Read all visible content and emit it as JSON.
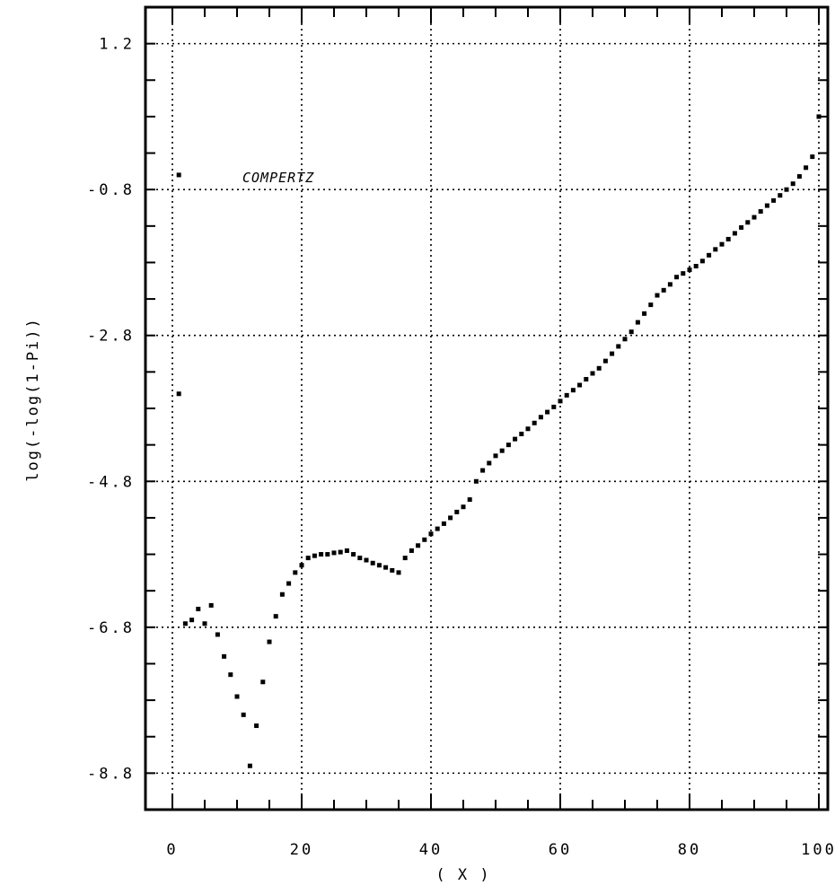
{
  "chart_data": {
    "type": "scatter",
    "xlabel": "( X )",
    "ylabel": "log(-log(1-Pi))",
    "annotation": "COMPERTZ",
    "xlim": [
      0,
      100
    ],
    "ylim": [
      -9.3,
      1.7
    ],
    "x_ticks": [
      0,
      20,
      40,
      60,
      80,
      100
    ],
    "x_tick_labels": [
      "0",
      "20",
      "40",
      "60",
      "80",
      "100"
    ],
    "y_ticks": [
      1.2,
      -0.8,
      -2.8,
      -4.8,
      -6.8,
      -8.8
    ],
    "y_tick_labels": [
      "1.2",
      "-0.8",
      "-2.8",
      "-4.8",
      "-6.8",
      "-8.8"
    ],
    "grid": true,
    "series": [
      {
        "x": [
          1,
          1,
          2,
          3,
          4,
          5,
          6,
          7,
          8,
          9,
          10,
          11,
          12,
          13,
          14,
          15,
          16,
          17,
          18,
          19,
          20,
          21,
          22,
          23,
          24,
          25,
          26,
          27,
          28,
          29,
          30,
          31,
          32,
          33,
          34,
          35,
          36,
          37,
          38,
          39,
          40,
          41,
          42,
          43,
          44,
          45,
          46,
          47,
          48,
          49,
          50,
          51,
          52,
          53,
          54,
          55,
          56,
          57,
          58,
          59,
          60,
          61,
          62,
          63,
          64,
          65,
          66,
          67,
          68,
          69,
          70,
          71,
          72,
          73,
          74,
          75,
          76,
          77,
          78,
          79,
          80,
          81,
          82,
          83,
          84,
          85,
          86,
          87,
          88,
          89,
          90,
          91,
          92,
          93,
          94,
          95,
          96,
          97,
          98,
          99,
          100
        ],
        "y": [
          -0.6,
          -3.6,
          -6.75,
          -6.7,
          -6.55,
          -6.75,
          -6.5,
          -6.9,
          -7.2,
          -7.45,
          -7.75,
          -8.0,
          -8.7,
          -8.15,
          -7.55,
          -7.0,
          -6.65,
          -6.35,
          -6.2,
          -6.05,
          -5.95,
          -5.85,
          -5.82,
          -5.8,
          -5.8,
          -5.78,
          -5.77,
          -5.75,
          -5.8,
          -5.85,
          -5.88,
          -5.92,
          -5.95,
          -5.98,
          -6.02,
          -6.05,
          -5.85,
          -5.75,
          -5.68,
          -5.6,
          -5.52,
          -5.45,
          -5.38,
          -5.3,
          -5.22,
          -5.15,
          -5.05,
          -4.8,
          -4.65,
          -4.55,
          -4.45,
          -4.38,
          -4.3,
          -4.22,
          -4.15,
          -4.08,
          -4.0,
          -3.92,
          -3.85,
          -3.78,
          -3.7,
          -3.62,
          -3.55,
          -3.48,
          -3.4,
          -3.32,
          -3.25,
          -3.15,
          -3.05,
          -2.95,
          -2.85,
          -2.75,
          -2.62,
          -2.5,
          -2.38,
          -2.25,
          -2.18,
          -2.1,
          -2.0,
          -1.95,
          -1.9,
          -1.85,
          -1.78,
          -1.7,
          -1.62,
          -1.55,
          -1.48,
          -1.4,
          -1.32,
          -1.25,
          -1.18,
          -1.1,
          -1.02,
          -0.95,
          -0.88,
          -0.8,
          -0.72,
          -0.62,
          -0.5,
          -0.35,
          0.2
        ]
      }
    ]
  }
}
